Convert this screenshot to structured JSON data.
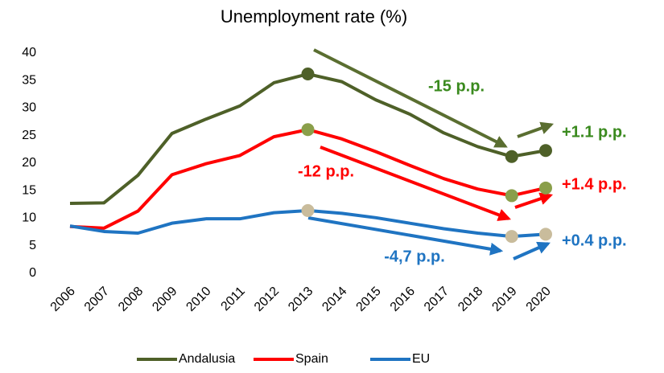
{
  "chart_data": {
    "type": "line",
    "title": "Unemployment rate (%)",
    "categories": [
      "2006",
      "2007",
      "2008",
      "2009",
      "2010",
      "2011",
      "2012",
      "2013",
      "2014",
      "2015",
      "2016",
      "2017",
      "2018",
      "2019",
      "2020"
    ],
    "series": [
      {
        "name": "Andalusia",
        "color": "#4e6028",
        "marker_color": "#4e6028",
        "values": [
          12.7,
          12.8,
          17.8,
          25.4,
          28.0,
          30.4,
          34.6,
          36.2,
          34.8,
          31.5,
          28.9,
          25.5,
          23.0,
          21.2,
          22.3
        ]
      },
      {
        "name": "Spain",
        "color": "#ff0000",
        "marker_color": "#8a9f4a",
        "values": [
          8.5,
          8.2,
          11.3,
          17.9,
          19.9,
          21.4,
          24.8,
          26.1,
          24.4,
          22.1,
          19.6,
          17.2,
          15.3,
          14.1,
          15.5
        ]
      },
      {
        "name": "EU",
        "color": "#1f74c2",
        "marker_color": "#c9bc9c",
        "values": [
          8.6,
          7.6,
          7.3,
          9.1,
          9.9,
          9.9,
          11.0,
          11.4,
          10.9,
          10.1,
          9.1,
          8.1,
          7.3,
          6.7,
          7.1
        ]
      }
    ],
    "markers": [
      "2013",
      "2019",
      "2020"
    ],
    "ylim": [
      0,
      40
    ],
    "yticks": [
      0,
      5,
      10,
      15,
      20,
      25,
      30,
      35,
      40
    ],
    "annotations": [
      {
        "text": "-15 p.p.",
        "color": "#3a8a1e"
      },
      {
        "text": "+1.1 p.p.",
        "color": "#3a8a1e"
      },
      {
        "text": "-12 p.p.",
        "color": "#ff0000"
      },
      {
        "text": "+1.4 p.p.",
        "color": "#ff0000"
      },
      {
        "text": "-4,7 p.p.",
        "color": "#1f74c2"
      },
      {
        "text": "+0.4 p.p.",
        "color": "#1f74c2"
      }
    ],
    "legend": "bottom"
  }
}
